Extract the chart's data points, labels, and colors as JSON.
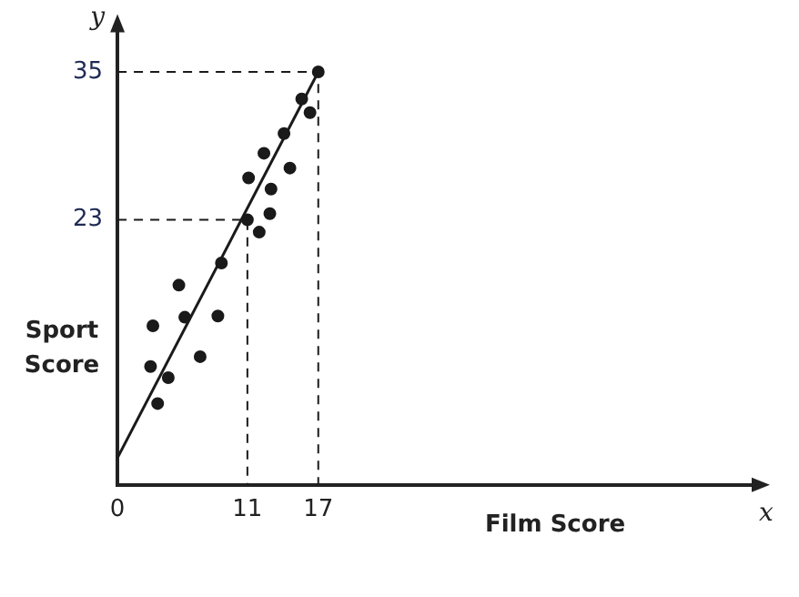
{
  "chart_data": {
    "type": "scatter",
    "xlabel": "Film Score",
    "ylabel": "Sport Score",
    "annotations": [
      "x",
      "y"
    ],
    "xlim": [
      0,
      54
    ],
    "ylim": [
      1.5,
      38.5
    ],
    "xticks": [
      0,
      11,
      17
    ],
    "yticks": [
      23,
      35
    ],
    "marker": "circle",
    "series": [
      {
        "color": "#1a1a1a",
        "x": [
          17,
          15.6,
          16.3,
          14.1,
          12.4,
          14.6,
          11.1,
          13.0,
          11,
          12.9,
          12.0,
          8.8,
          5.2,
          3.0,
          5.7,
          8.5,
          7.0,
          2.8,
          4.3,
          3.4
        ],
        "values": [
          35,
          32.8,
          31.7,
          30,
          28.4,
          27.2,
          26.4,
          25.5,
          23,
          23.5,
          22.0,
          19.5,
          17.7,
          14.4,
          15.1,
          15.2,
          11.9,
          11.1,
          10.2,
          8.1
        ]
      },
      {
        "type": "line",
        "color": "#1a1a1a",
        "line_style": "solid",
        "marker": "none",
        "x": [
          0,
          17
        ],
        "values": [
          3.7,
          35
        ]
      },
      {
        "type": "line",
        "color": "#1a1a1a",
        "line_style": "dashed",
        "marker": "none",
        "x": [
          0,
          11,
          11
        ],
        "values": [
          23,
          23,
          1.5
        ]
      },
      {
        "type": "line",
        "color": "#1a1a1a",
        "line_style": "dashed",
        "marker": "none",
        "x": [
          0,
          17,
          17
        ],
        "values": [
          35,
          35,
          1.5
        ]
      }
    ]
  }
}
